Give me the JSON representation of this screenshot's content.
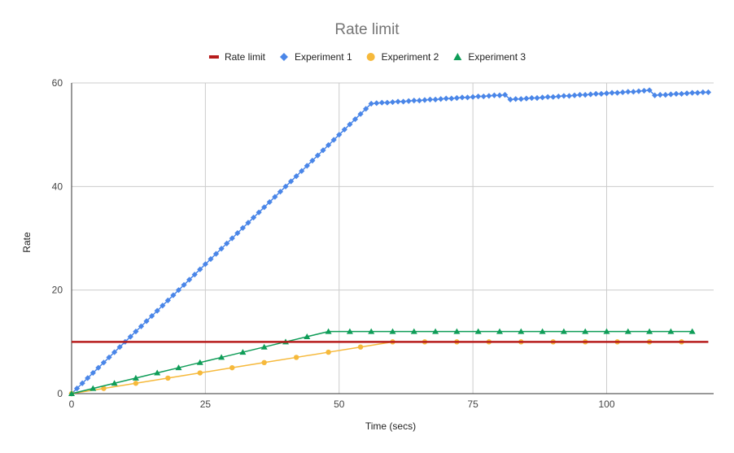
{
  "chart_data": {
    "type": "line",
    "title": "Rate limit",
    "xlabel": "Time (secs)",
    "ylabel": "Rate",
    "xlim": [
      0,
      120
    ],
    "ylim": [
      0,
      60
    ],
    "xticks": [
      0,
      25,
      50,
      75,
      100
    ],
    "yticks": [
      0,
      20,
      40,
      60
    ],
    "grid": true,
    "legend_position": "top",
    "series": [
      {
        "name": "Rate limit",
        "color": "#b71c1c",
        "marker": "none",
        "points": [
          [
            0,
            10
          ],
          [
            119,
            10
          ]
        ]
      },
      {
        "name": "Experiment 1",
        "color": "#4a86e8",
        "marker": "diamond",
        "points": [
          [
            0,
            0
          ],
          [
            1,
            1
          ],
          [
            2,
            2
          ],
          [
            3,
            3
          ],
          [
            4,
            4
          ],
          [
            5,
            5
          ],
          [
            6,
            6
          ],
          [
            7,
            7
          ],
          [
            8,
            8
          ],
          [
            9,
            9
          ],
          [
            10,
            10
          ],
          [
            11,
            11
          ],
          [
            12,
            12
          ],
          [
            13,
            13
          ],
          [
            14,
            14
          ],
          [
            15,
            15
          ],
          [
            16,
            16
          ],
          [
            17,
            17
          ],
          [
            18,
            18
          ],
          [
            19,
            19
          ],
          [
            20,
            20
          ],
          [
            21,
            21
          ],
          [
            22,
            22
          ],
          [
            23,
            23
          ],
          [
            24,
            24
          ],
          [
            25,
            25
          ],
          [
            26,
            26
          ],
          [
            27,
            27
          ],
          [
            28,
            28
          ],
          [
            29,
            29
          ],
          [
            30,
            30
          ],
          [
            31,
            31
          ],
          [
            32,
            32
          ],
          [
            33,
            33
          ],
          [
            34,
            34
          ],
          [
            35,
            35
          ],
          [
            36,
            36
          ],
          [
            37,
            37
          ],
          [
            38,
            38
          ],
          [
            39,
            39
          ],
          [
            40,
            40
          ],
          [
            41,
            41
          ],
          [
            42,
            42
          ],
          [
            43,
            43
          ],
          [
            44,
            44
          ],
          [
            45,
            45
          ],
          [
            46,
            46
          ],
          [
            47,
            47
          ],
          [
            48,
            48
          ],
          [
            49,
            49
          ],
          [
            50,
            50
          ],
          [
            51,
            51
          ],
          [
            52,
            52
          ],
          [
            53,
            53
          ],
          [
            54,
            54
          ],
          [
            55,
            55
          ],
          [
            56,
            56
          ],
          [
            57,
            56.1
          ],
          [
            58,
            56.2
          ],
          [
            59,
            56.2
          ],
          [
            60,
            56.3
          ],
          [
            61,
            56.4
          ],
          [
            62,
            56.4
          ],
          [
            63,
            56.5
          ],
          [
            64,
            56.6
          ],
          [
            65,
            56.6
          ],
          [
            66,
            56.7
          ],
          [
            67,
            56.8
          ],
          [
            68,
            56.8
          ],
          [
            69,
            56.9
          ],
          [
            70,
            57
          ],
          [
            71,
            57
          ],
          [
            72,
            57.1
          ],
          [
            73,
            57.2
          ],
          [
            74,
            57.2
          ],
          [
            75,
            57.3
          ],
          [
            76,
            57.4
          ],
          [
            77,
            57.4
          ],
          [
            78,
            57.5
          ],
          [
            79,
            57.6
          ],
          [
            80,
            57.6
          ],
          [
            81,
            57.7
          ],
          [
            82,
            56.8
          ],
          [
            83,
            56.9
          ],
          [
            84,
            56.9
          ],
          [
            85,
            57
          ],
          [
            86,
            57.1
          ],
          [
            87,
            57.1
          ],
          [
            88,
            57.2
          ],
          [
            89,
            57.3
          ],
          [
            90,
            57.3
          ],
          [
            91,
            57.4
          ],
          [
            92,
            57.5
          ],
          [
            93,
            57.5
          ],
          [
            94,
            57.6
          ],
          [
            95,
            57.7
          ],
          [
            96,
            57.7
          ],
          [
            97,
            57.8
          ],
          [
            98,
            57.9
          ],
          [
            99,
            57.9
          ],
          [
            100,
            58
          ],
          [
            101,
            58.1
          ],
          [
            102,
            58.1
          ],
          [
            103,
            58.2
          ],
          [
            104,
            58.3
          ],
          [
            105,
            58.3
          ],
          [
            106,
            58.4
          ],
          [
            107,
            58.5
          ],
          [
            108,
            58.6
          ],
          [
            109,
            57.6
          ],
          [
            110,
            57.7
          ],
          [
            111,
            57.7
          ],
          [
            112,
            57.8
          ],
          [
            113,
            57.9
          ],
          [
            114,
            57.9
          ],
          [
            115,
            58
          ],
          [
            116,
            58.1
          ],
          [
            117,
            58.1
          ],
          [
            118,
            58.2
          ],
          [
            119,
            58.2
          ]
        ]
      },
      {
        "name": "Experiment 2",
        "color": "#f6b93b",
        "marker": "circle",
        "points": [
          [
            0,
            0
          ],
          [
            6,
            1
          ],
          [
            12,
            2
          ],
          [
            18,
            3
          ],
          [
            24,
            4
          ],
          [
            30,
            5
          ],
          [
            36,
            6
          ],
          [
            42,
            7
          ],
          [
            48,
            8
          ],
          [
            54,
            9
          ],
          [
            60,
            10
          ],
          [
            66,
            10
          ],
          [
            72,
            10
          ],
          [
            78,
            10
          ],
          [
            84,
            10
          ],
          [
            90,
            10
          ],
          [
            96,
            10
          ],
          [
            102,
            10
          ],
          [
            108,
            10
          ],
          [
            114,
            10
          ]
        ]
      },
      {
        "name": "Experiment 3",
        "color": "#0f9d58",
        "marker": "triangle",
        "points": [
          [
            0,
            0
          ],
          [
            4,
            1
          ],
          [
            8,
            2
          ],
          [
            12,
            3
          ],
          [
            16,
            4
          ],
          [
            20,
            5
          ],
          [
            24,
            6
          ],
          [
            28,
            7
          ],
          [
            32,
            8
          ],
          [
            36,
            9
          ],
          [
            40,
            10
          ],
          [
            44,
            11
          ],
          [
            48,
            12
          ],
          [
            52,
            12
          ],
          [
            56,
            12
          ],
          [
            60,
            12
          ],
          [
            64,
            12
          ],
          [
            68,
            12
          ],
          [
            72,
            12
          ],
          [
            76,
            12
          ],
          [
            80,
            12
          ],
          [
            84,
            12
          ],
          [
            88,
            12
          ],
          [
            92,
            12
          ],
          [
            96,
            12
          ],
          [
            100,
            12
          ],
          [
            104,
            12
          ],
          [
            108,
            12
          ],
          [
            112,
            12
          ],
          [
            116,
            12
          ]
        ]
      }
    ]
  }
}
